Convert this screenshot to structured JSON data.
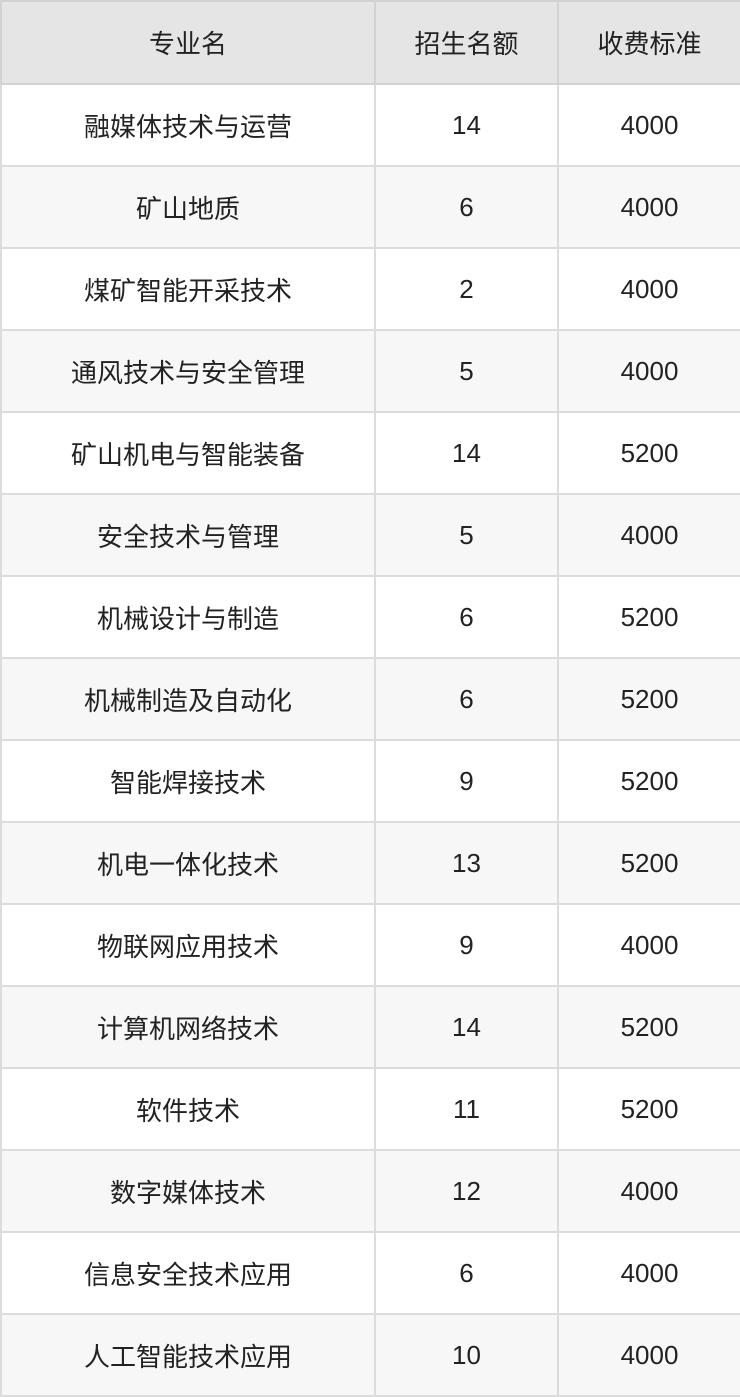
{
  "table": {
    "headers": [
      "专业名",
      "招生名额",
      "收费标准"
    ],
    "rows": [
      [
        "融媒体技术与运营",
        "14",
        "4000"
      ],
      [
        "矿山地质",
        "6",
        "4000"
      ],
      [
        "煤矿智能开采技术",
        "2",
        "4000"
      ],
      [
        "通风技术与安全管理",
        "5",
        "4000"
      ],
      [
        "矿山机电与智能装备",
        "14",
        "5200"
      ],
      [
        "安全技术与管理",
        "5",
        "4000"
      ],
      [
        "机械设计与制造",
        "6",
        "5200"
      ],
      [
        "机械制造及自动化",
        "6",
        "5200"
      ],
      [
        "智能焊接技术",
        "9",
        "5200"
      ],
      [
        "机电一体化技术",
        "13",
        "5200"
      ],
      [
        "物联网应用技术",
        "9",
        "4000"
      ],
      [
        "计算机网络技术",
        "14",
        "5200"
      ],
      [
        "软件技术",
        "11",
        "5200"
      ],
      [
        "数字媒体技术",
        "12",
        "4000"
      ],
      [
        "信息安全技术应用",
        "6",
        "4000"
      ],
      [
        "人工智能技术应用",
        "10",
        "4000"
      ]
    ]
  }
}
